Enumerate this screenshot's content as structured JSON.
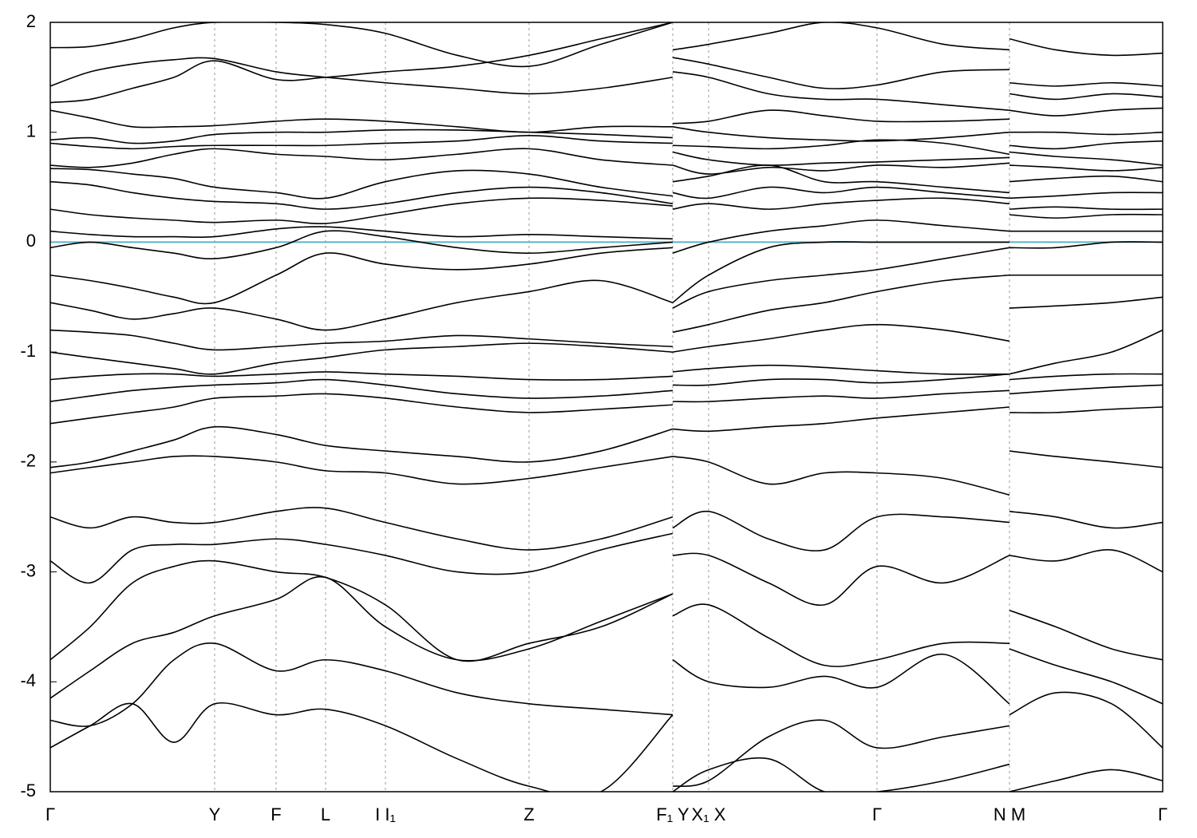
{
  "chart_data": {
    "type": "line",
    "x": [
      0,
      50,
      103,
      155,
      206,
      283,
      345,
      420,
      510,
      600,
      690,
      780,
      780,
      780,
      825,
      900,
      970,
      1036,
      1120,
      1202,
      1202,
      1202,
      1260,
      1330,
      1394
    ],
    "xlim": [
      0,
      1394
    ],
    "xticks": [
      {
        "value": 0,
        "label": "Γ"
      },
      {
        "value": 206,
        "label": "Y"
      },
      {
        "value": 283,
        "label": "F"
      },
      {
        "value": 345,
        "label": "L"
      },
      {
        "value": 420,
        "label": "I  I₁"
      },
      {
        "value": 600,
        "label": "Z"
      },
      {
        "value": 780,
        "label": "F₁ Y"
      },
      {
        "value": 825,
        "label": "X₁ X"
      },
      {
        "value": 1036,
        "label": "Γ"
      },
      {
        "value": 1202,
        "label": "N  M"
      },
      {
        "value": 1394,
        "label": "Γ"
      }
    ],
    "ylim": [
      -5,
      2
    ],
    "yticks": [
      2,
      1,
      0,
      -1,
      -2,
      -3,
      -4,
      -5
    ],
    "hline": 0,
    "hline_color": "#5ab4c9",
    "grid": true,
    "series": [
      {
        "color": "#000000",
        "values": [
          1.77,
          1.78,
          1.85,
          1.95,
          2.0,
          2.0,
          1.98,
          1.9,
          1.7,
          1.6,
          1.8,
          2.0,
          null,
          1.75,
          1.8,
          1.9,
          2.0,
          1.95,
          1.8,
          1.75,
          null,
          1.85,
          1.75,
          1.7,
          1.72
        ]
      },
      {
        "color": "#000000",
        "values": [
          1.42,
          1.55,
          1.62,
          1.66,
          1.67,
          1.55,
          1.5,
          1.45,
          1.4,
          1.35,
          1.4,
          1.5,
          null,
          1.68,
          1.62,
          1.5,
          1.4,
          1.43,
          1.55,
          1.57,
          null,
          1.45,
          1.42,
          1.45,
          1.42
        ]
      },
      {
        "color": "#000000",
        "values": [
          1.27,
          1.3,
          1.4,
          1.5,
          1.65,
          1.48,
          1.5,
          1.55,
          1.6,
          1.7,
          1.85,
          2.0,
          null,
          1.55,
          1.5,
          1.35,
          1.3,
          1.3,
          1.25,
          1.2,
          null,
          1.35,
          1.3,
          1.35,
          1.32
        ]
      },
      {
        "color": "#000000",
        "values": [
          1.2,
          1.13,
          1.05,
          1.05,
          1.06,
          1.1,
          1.12,
          1.1,
          1.05,
          1.0,
          1.05,
          1.05,
          null,
          1.08,
          1.1,
          1.2,
          1.15,
          1.1,
          1.1,
          1.12,
          null,
          1.2,
          1.15,
          1.2,
          1.22
        ]
      },
      {
        "color": "#000000",
        "values": [
          0.93,
          0.95,
          0.9,
          0.92,
          0.98,
          1.0,
          1.0,
          1.02,
          1.02,
          1.0,
          0.98,
          0.95,
          null,
          1.05,
          1.0,
          0.95,
          0.93,
          0.92,
          0.95,
          1.0,
          null,
          1.0,
          1.0,
          0.98,
          1.0
        ]
      },
      {
        "color": "#000000",
        "values": [
          0.9,
          0.87,
          0.85,
          0.87,
          0.88,
          0.88,
          0.88,
          0.9,
          0.92,
          0.97,
          0.92,
          0.9,
          null,
          0.88,
          0.87,
          0.85,
          0.88,
          0.93,
          0.9,
          0.8,
          null,
          0.88,
          0.85,
          0.9,
          0.92
        ]
      },
      {
        "color": "#000000",
        "values": [
          0.7,
          0.68,
          0.72,
          0.8,
          0.85,
          0.8,
          0.78,
          0.75,
          0.8,
          0.85,
          0.75,
          0.7,
          null,
          0.82,
          0.75,
          0.7,
          0.72,
          0.73,
          0.75,
          0.77,
          null,
          0.82,
          0.78,
          0.75,
          0.7
        ]
      },
      {
        "color": "#000000",
        "values": [
          0.67,
          0.66,
          0.62,
          0.58,
          0.5,
          0.45,
          0.4,
          0.55,
          0.65,
          0.62,
          0.5,
          0.42,
          null,
          0.7,
          0.62,
          0.68,
          0.65,
          0.7,
          0.68,
          0.72,
          null,
          0.7,
          0.68,
          0.65,
          0.68
        ]
      },
      {
        "color": "#000000",
        "values": [
          0.55,
          0.52,
          0.45,
          0.4,
          0.37,
          0.35,
          0.3,
          0.35,
          0.45,
          0.5,
          0.45,
          0.35,
          null,
          0.55,
          0.6,
          0.7,
          0.55,
          0.55,
          0.5,
          0.45,
          null,
          0.55,
          0.58,
          0.6,
          0.55
        ]
      },
      {
        "color": "#000000",
        "values": [
          0.3,
          0.25,
          0.22,
          0.2,
          0.18,
          0.2,
          0.17,
          0.25,
          0.35,
          0.4,
          0.38,
          0.33,
          null,
          0.45,
          0.4,
          0.5,
          0.45,
          0.5,
          0.45,
          0.4,
          null,
          0.4,
          0.42,
          0.45,
          0.45
        ]
      },
      {
        "color": "#000000",
        "values": [
          0.1,
          0.07,
          0.05,
          0.05,
          0.05,
          0.12,
          0.14,
          0.1,
          0.05,
          0.07,
          0.05,
          0.03,
          null,
          0.3,
          0.35,
          0.3,
          0.35,
          0.38,
          0.4,
          0.35,
          null,
          0.3,
          0.32,
          0.3,
          0.3
        ]
      },
      {
        "color": "#000000",
        "values": [
          -0.05,
          0.0,
          -0.05,
          -0.1,
          -0.15,
          -0.05,
          0.1,
          0.05,
          -0.05,
          -0.1,
          -0.05,
          0.0,
          null,
          -0.1,
          0.0,
          0.1,
          0.15,
          0.2,
          0.15,
          0.1,
          null,
          0.25,
          0.22,
          0.25,
          0.25
        ]
      },
      {
        "color": "#000000",
        "values": [
          -0.3,
          -0.35,
          -0.42,
          -0.5,
          -0.55,
          -0.3,
          -0.1,
          -0.2,
          -0.25,
          -0.2,
          -0.1,
          -0.05,
          null,
          -0.55,
          -0.3,
          -0.05,
          0.0,
          0.0,
          0.0,
          0.0,
          null,
          0.1,
          0.1,
          0.1,
          0.1
        ]
      },
      {
        "color": "#000000",
        "values": [
          -0.55,
          -0.62,
          -0.7,
          -0.65,
          -0.6,
          -0.7,
          -0.8,
          -0.7,
          -0.55,
          -0.45,
          -0.35,
          -0.55,
          null,
          -0.6,
          -0.45,
          -0.35,
          -0.3,
          -0.25,
          -0.15,
          -0.05,
          null,
          -0.05,
          -0.05,
          0.0,
          0.0
        ]
      },
      {
        "color": "#000000",
        "values": [
          -0.8,
          -0.82,
          -0.85,
          -0.92,
          -0.98,
          -0.95,
          -0.92,
          -0.9,
          -0.85,
          -0.88,
          -0.92,
          -0.95,
          null,
          -0.82,
          -0.75,
          -0.62,
          -0.55,
          -0.45,
          -0.35,
          -0.3,
          null,
          -0.3,
          -0.3,
          -0.3,
          -0.3
        ]
      },
      {
        "color": "#000000",
        "values": [
          -1.0,
          -1.05,
          -1.1,
          -1.15,
          -1.2,
          -1.1,
          -1.05,
          -0.98,
          -0.95,
          -0.92,
          -0.95,
          -1.0,
          null,
          -1.0,
          -0.95,
          -0.88,
          -0.8,
          -0.75,
          -0.8,
          -0.9,
          null,
          -0.6,
          -0.58,
          -0.55,
          -0.5
        ]
      },
      {
        "color": "#000000",
        "values": [
          -1.25,
          -1.22,
          -1.2,
          -1.2,
          -1.22,
          -1.2,
          -1.18,
          -1.2,
          -1.22,
          -1.25,
          -1.25,
          -1.22,
          null,
          -1.18,
          -1.15,
          -1.12,
          -1.14,
          -1.17,
          -1.2,
          -1.2,
          null,
          -1.2,
          -1.1,
          -1.0,
          -0.8
        ]
      },
      {
        "color": "#000000",
        "values": [
          -1.45,
          -1.4,
          -1.35,
          -1.32,
          -1.3,
          -1.28,
          -1.25,
          -1.3,
          -1.38,
          -1.42,
          -1.4,
          -1.35,
          null,
          -1.3,
          -1.3,
          -1.25,
          -1.25,
          -1.28,
          -1.25,
          -1.2,
          null,
          -1.25,
          -1.22,
          -1.2,
          -1.2
        ]
      },
      {
        "color": "#000000",
        "values": [
          -1.65,
          -1.6,
          -1.55,
          -1.5,
          -1.42,
          -1.4,
          -1.38,
          -1.42,
          -1.5,
          -1.55,
          -1.52,
          -1.48,
          null,
          -1.45,
          -1.45,
          -1.42,
          -1.4,
          -1.42,
          -1.38,
          -1.35,
          null,
          -1.38,
          -1.35,
          -1.32,
          -1.3
        ]
      },
      {
        "color": "#000000",
        "values": [
          -2.05,
          -2.0,
          -1.9,
          -1.8,
          -1.68,
          -1.75,
          -1.85,
          -1.9,
          -1.95,
          -2.0,
          -1.9,
          -1.7,
          null,
          -1.7,
          -1.72,
          -1.68,
          -1.65,
          -1.6,
          -1.55,
          -1.5,
          null,
          -1.55,
          -1.55,
          -1.52,
          -1.5
        ]
      },
      {
        "color": "#000000",
        "values": [
          -2.1,
          -2.05,
          -2.0,
          -1.95,
          -1.95,
          -2.0,
          -2.08,
          -2.1,
          -2.2,
          -2.15,
          -2.05,
          -1.95,
          null,
          -1.95,
          -2.0,
          -2.2,
          -2.1,
          -2.1,
          -2.15,
          -2.3,
          null,
          -1.9,
          -1.95,
          -2.0,
          -2.05
        ]
      },
      {
        "color": "#000000",
        "values": [
          -2.5,
          -2.6,
          -2.5,
          -2.55,
          -2.55,
          -2.45,
          -2.42,
          -2.55,
          -2.7,
          -2.8,
          -2.7,
          -2.5,
          null,
          -2.6,
          -2.45,
          -2.7,
          -2.8,
          -2.5,
          -2.5,
          -2.55,
          null,
          -2.45,
          -2.5,
          -2.6,
          -2.55
        ]
      },
      {
        "color": "#000000",
        "values": [
          -2.9,
          -3.1,
          -2.8,
          -2.75,
          -2.75,
          -2.7,
          -2.75,
          -2.85,
          -3.0,
          -3.0,
          -2.8,
          -2.65,
          null,
          -2.85,
          -2.85,
          -3.1,
          -3.3,
          -2.95,
          -3.1,
          -2.85,
          null,
          -2.85,
          -2.9,
          -2.8,
          -3.0
        ]
      },
      {
        "color": "#000000",
        "values": [
          -3.8,
          -3.5,
          -3.1,
          -2.95,
          -2.9,
          -3.0,
          -3.05,
          -3.3,
          -3.8,
          -3.65,
          -3.5,
          -3.2,
          null,
          -3.4,
          -3.3,
          -3.6,
          -3.85,
          -3.8,
          -3.65,
          -3.65,
          null,
          -3.35,
          -3.5,
          -3.7,
          -3.8
        ]
      },
      {
        "color": "#000000",
        "values": [
          -4.15,
          -3.9,
          -3.65,
          -3.55,
          -3.4,
          -3.25,
          -3.05,
          -3.5,
          -3.8,
          -3.7,
          -3.45,
          -3.2,
          null,
          -3.8,
          -4.0,
          -4.05,
          -3.95,
          -4.05,
          -3.75,
          -4.2,
          null,
          -3.7,
          -3.85,
          -4.0,
          -4.2
        ]
      },
      {
        "color": "#000000",
        "values": [
          -4.35,
          -4.4,
          -4.2,
          -3.8,
          -3.65,
          -3.9,
          -3.8,
          -3.9,
          -4.1,
          -4.2,
          -4.25,
          -4.3,
          null,
          -4.95,
          -4.9,
          -4.5,
          -4.35,
          -4.6,
          -4.5,
          -4.4,
          null,
          -4.3,
          -4.1,
          -4.2,
          -4.6
        ]
      },
      {
        "color": "#000000",
        "values": [
          -4.6,
          -4.4,
          -4.2,
          -4.55,
          -4.2,
          -4.3,
          -4.25,
          -4.4,
          -4.7,
          -4.95,
          -5.0,
          -4.3,
          null,
          -5.0,
          -4.8,
          -4.7,
          -5.0,
          -5.0,
          -4.9,
          -4.75,
          null,
          -5.0,
          -4.9,
          -4.8,
          -4.9
        ]
      }
    ]
  }
}
